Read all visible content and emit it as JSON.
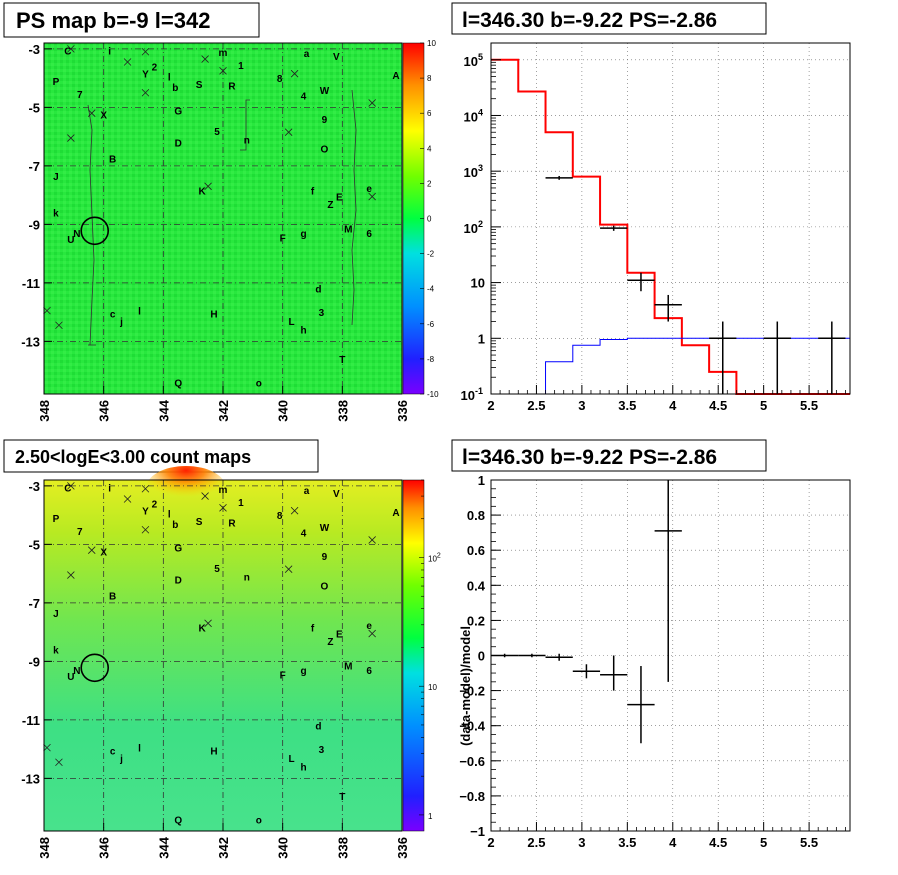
{
  "chart_data": [
    {
      "id": "ps_map",
      "type": "heatmap",
      "title": "PS map b=-9 l=342",
      "x_ticks": [
        "348",
        "346",
        "344",
        "342",
        "340",
        "338",
        "336"
      ],
      "y_ticks": [
        "-3",
        "-5",
        "-7",
        "-9",
        "-11",
        "-13"
      ],
      "xlim": [
        348,
        336
      ],
      "ylim": [
        -14.8,
        -2.8
      ],
      "colorbar": {
        "min": -10,
        "max": 10,
        "ticks": [
          "10",
          "8",
          "6",
          "4",
          "2",
          "0",
          "-2",
          "-4",
          "-6",
          "-8",
          "-10"
        ]
      },
      "colors": {
        "background": "#22e33a"
      }
    },
    {
      "id": "ps_spectrum",
      "type": "line",
      "title": "l=346.30 b=-9.22 PS=-2.86",
      "xlim": [
        2,
        5.95
      ],
      "ylim": [
        0.1,
        200000
      ],
      "log_y": true,
      "x_ticks": [
        "2",
        "2.5",
        "3",
        "3.5",
        "4",
        "4.5",
        "5",
        "5.5"
      ],
      "y_ticks": [
        {
          "value": 100000,
          "base": "10",
          "exp": "5"
        },
        {
          "value": 10000,
          "base": "10",
          "exp": "4"
        },
        {
          "value": 1000,
          "base": "10",
          "exp": "3"
        },
        {
          "value": 100,
          "base": "10",
          "exp": "2"
        },
        {
          "value": 10,
          "label": "10"
        },
        {
          "value": 1,
          "label": "1"
        },
        {
          "value": 0.1,
          "base": "10",
          "exp": "-1"
        }
      ],
      "grid": true,
      "series": [
        {
          "color": "#ff0000",
          "style": "step",
          "edges": [
            2,
            2.3,
            2.6,
            2.9,
            3.2,
            3.5,
            3.8,
            4.1,
            4.4,
            4.7,
            5.0,
            5.3,
            5.6,
            5.95
          ],
          "values": [
            100000,
            27000,
            5000,
            800,
            110,
            15,
            2.3,
            0.75,
            0.25,
            0.1,
            0.1,
            0.1,
            0.1
          ]
        },
        {
          "color": "#0000ff",
          "style": "step",
          "edges": [
            2.6,
            2.9,
            3.2,
            3.5,
            3.8,
            4.1,
            4.4,
            4.7,
            5.0,
            5.3,
            5.6,
            5.95
          ],
          "values": [
            0.38,
            0.75,
            0.95,
            1.0,
            1.0,
            1.0,
            1.0,
            1.0,
            1.0,
            1.0,
            1.0
          ]
        },
        {
          "color": "#000000",
          "style": "errorbar",
          "points": [
            {
              "x": 2.75,
              "y": 760,
              "xerr": 0.15,
              "ylo": 700,
              "yhi": 820
            },
            {
              "x": 3.35,
              "y": 95,
              "xerr": 0.15,
              "ylo": 85,
              "yhi": 105
            },
            {
              "x": 3.65,
              "y": 11,
              "xerr": 0.15,
              "ylo": 7,
              "yhi": 15
            },
            {
              "x": 3.95,
              "y": 4,
              "xerr": 0.15,
              "ylo": 2,
              "yhi": 6
            },
            {
              "x": 4.55,
              "y": 1,
              "xerr": 0.15,
              "ylo": 0.1,
              "yhi": 2
            },
            {
              "x": 5.15,
              "y": 1,
              "xerr": 0.15,
              "ylo": 0.1,
              "yhi": 2
            },
            {
              "x": 5.75,
              "y": 1,
              "xerr": 0.15,
              "ylo": 0.1,
              "yhi": 2
            }
          ]
        }
      ]
    },
    {
      "id": "count_map",
      "type": "heatmap",
      "title": "2.50<logE<3.00 count maps",
      "x_ticks": [
        "348",
        "346",
        "344",
        "342",
        "340",
        "338",
        "336"
      ],
      "y_ticks": [
        "-3",
        "-5",
        "-7",
        "-9",
        "-11",
        "-13"
      ],
      "xlim": [
        348,
        336
      ],
      "ylim": [
        -14.8,
        -2.8
      ],
      "log_z": true,
      "colorbar": {
        "ticks": [
          {
            "label": "10",
            "exp": "2",
            "value": 100
          },
          {
            "label": "10",
            "value": 10
          },
          {
            "label": "1",
            "value": 1
          }
        ],
        "zmin": 0.75,
        "zmax": 400
      }
    },
    {
      "id": "residual",
      "type": "scatter",
      "title": "l=346.30 b=-9.22 PS=-2.86",
      "ylabel": "(data-model)/model",
      "xlim": [
        2,
        5.95
      ],
      "ylim": [
        -1,
        1
      ],
      "x_ticks": [
        "2",
        "2.5",
        "3",
        "3.5",
        "4",
        "4.5",
        "5",
        "5.5"
      ],
      "y_ticks": [
        "1",
        "0.8",
        "0.6",
        "0.4",
        "0.2",
        "0",
        "-0.2",
        "-0.4",
        "-0.6",
        "-0.8",
        "-1"
      ],
      "grid": true,
      "points": [
        {
          "x": 2.15,
          "y": 0.0,
          "xerr": 0.15,
          "ylo": -0.01,
          "yhi": 0.01
        },
        {
          "x": 2.45,
          "y": 0.0,
          "xerr": 0.15,
          "ylo": -0.01,
          "yhi": 0.01
        },
        {
          "x": 2.75,
          "y": -0.01,
          "xerr": 0.15,
          "ylo": -0.03,
          "yhi": 0.01
        },
        {
          "x": 3.05,
          "y": -0.09,
          "xerr": 0.15,
          "ylo": -0.13,
          "yhi": -0.05
        },
        {
          "x": 3.35,
          "y": -0.11,
          "xerr": 0.15,
          "ylo": -0.2,
          "yhi": 0.0
        },
        {
          "x": 3.65,
          "y": -0.28,
          "xerr": 0.15,
          "ylo": -0.5,
          "yhi": -0.06
        },
        {
          "x": 3.95,
          "y": 0.71,
          "xerr": 0.15,
          "ylo": -0.15,
          "yhi": 1.0
        }
      ]
    }
  ],
  "source_labels": [
    {
      "t": "C",
      "l": 347.2,
      "b": -3.05
    },
    {
      "t": "i",
      "l": 345.8,
      "b": -3.05
    },
    {
      "t": "m",
      "l": 342.0,
      "b": -3.1
    },
    {
      "t": "a",
      "l": 339.2,
      "b": -3.15
    },
    {
      "t": "V",
      "l": 338.2,
      "b": -3.25
    },
    {
      "t": "2",
      "l": 344.3,
      "b": -3.6
    },
    {
      "t": "1",
      "l": 341.4,
      "b": -3.55
    },
    {
      "t": "Y",
      "l": 344.6,
      "b": -3.85
    },
    {
      "t": "l",
      "l": 343.8,
      "b": -3.95
    },
    {
      "t": "8",
      "l": 340.1,
      "b": -4.0
    },
    {
      "t": "A",
      "l": 336.2,
      "b": -3.9
    },
    {
      "t": "P",
      "l": 347.6,
      "b": -4.1
    },
    {
      "t": "b",
      "l": 343.6,
      "b": -4.3
    },
    {
      "t": "S",
      "l": 342.8,
      "b": -4.2
    },
    {
      "t": "R",
      "l": 341.7,
      "b": -4.25
    },
    {
      "t": "W",
      "l": 338.6,
      "b": -4.4
    },
    {
      "t": "7",
      "l": 346.8,
      "b": -4.55
    },
    {
      "t": "4",
      "l": 339.3,
      "b": -4.6
    },
    {
      "t": "X",
      "l": 346.0,
      "b": -5.25
    },
    {
      "t": "G",
      "l": 343.5,
      "b": -5.1
    },
    {
      "t": "9",
      "l": 338.6,
      "b": -5.4
    },
    {
      "t": "5",
      "l": 342.2,
      "b": -5.8
    },
    {
      "t": "n",
      "l": 341.2,
      "b": -6.1
    },
    {
      "t": "D",
      "l": 343.5,
      "b": -6.2
    },
    {
      "t": "O",
      "l": 338.6,
      "b": -6.4
    },
    {
      "t": "B",
      "l": 345.7,
      "b": -6.75
    },
    {
      "t": "J",
      "l": 347.6,
      "b": -7.35
    },
    {
      "t": "f",
      "l": 339.0,
      "b": -7.85
    },
    {
      "t": "K",
      "l": 342.7,
      "b": -7.85
    },
    {
      "t": "E",
      "l": 338.1,
      "b": -8.05
    },
    {
      "t": "e",
      "l": 337.1,
      "b": -7.75
    },
    {
      "t": "Z",
      "l": 338.4,
      "b": -8.3
    },
    {
      "t": "k",
      "l": 347.6,
      "b": -8.6
    },
    {
      "t": "M",
      "l": 337.8,
      "b": -9.15
    },
    {
      "t": "6",
      "l": 337.1,
      "b": -9.3
    },
    {
      "t": "g",
      "l": 339.3,
      "b": -9.3
    },
    {
      "t": "F",
      "l": 340.0,
      "b": -9.45
    },
    {
      "t": "N",
      "l": 346.9,
      "b": -9.3
    },
    {
      "t": "U",
      "l": 347.1,
      "b": -9.5
    },
    {
      "t": "d",
      "l": 338.8,
      "b": -11.2
    },
    {
      "t": "3",
      "l": 338.7,
      "b": -12.0
    },
    {
      "t": "l",
      "l": 344.8,
      "b": -11.95
    },
    {
      "t": "c",
      "l": 345.7,
      "b": -12.05
    },
    {
      "t": "j",
      "l": 345.4,
      "b": -12.3
    },
    {
      "t": "H",
      "l": 342.3,
      "b": -12.05
    },
    {
      "t": "L",
      "l": 339.7,
      "b": -12.3
    },
    {
      "t": "h",
      "l": 339.3,
      "b": -12.6
    },
    {
      "t": "T",
      "l": 338.0,
      "b": -13.6
    },
    {
      "t": "Q",
      "l": 343.5,
      "b": -14.4
    },
    {
      "t": "o",
      "l": 340.8,
      "b": -14.4
    }
  ],
  "source_markers": [
    {
      "l": 347.1,
      "b": -3.0
    },
    {
      "l": 344.6,
      "b": -3.1
    },
    {
      "l": 345.2,
      "b": -3.45
    },
    {
      "l": 342.6,
      "b": -3.35
    },
    {
      "l": 342.0,
      "b": -3.75
    },
    {
      "l": 339.6,
      "b": -3.85
    },
    {
      "l": 344.6,
      "b": -4.5
    },
    {
      "l": 346.4,
      "b": -5.2
    },
    {
      "l": 337.0,
      "b": -4.85
    },
    {
      "l": 347.1,
      "b": -6.05
    },
    {
      "l": 339.8,
      "b": -5.85
    },
    {
      "l": 342.5,
      "b": -7.7
    },
    {
      "l": 337.0,
      "b": -8.05
    },
    {
      "l": 347.9,
      "b": -11.95
    },
    {
      "l": 347.5,
      "b": -12.45
    }
  ],
  "circle_marker": {
    "l": 346.3,
    "b": -9.22
  }
}
